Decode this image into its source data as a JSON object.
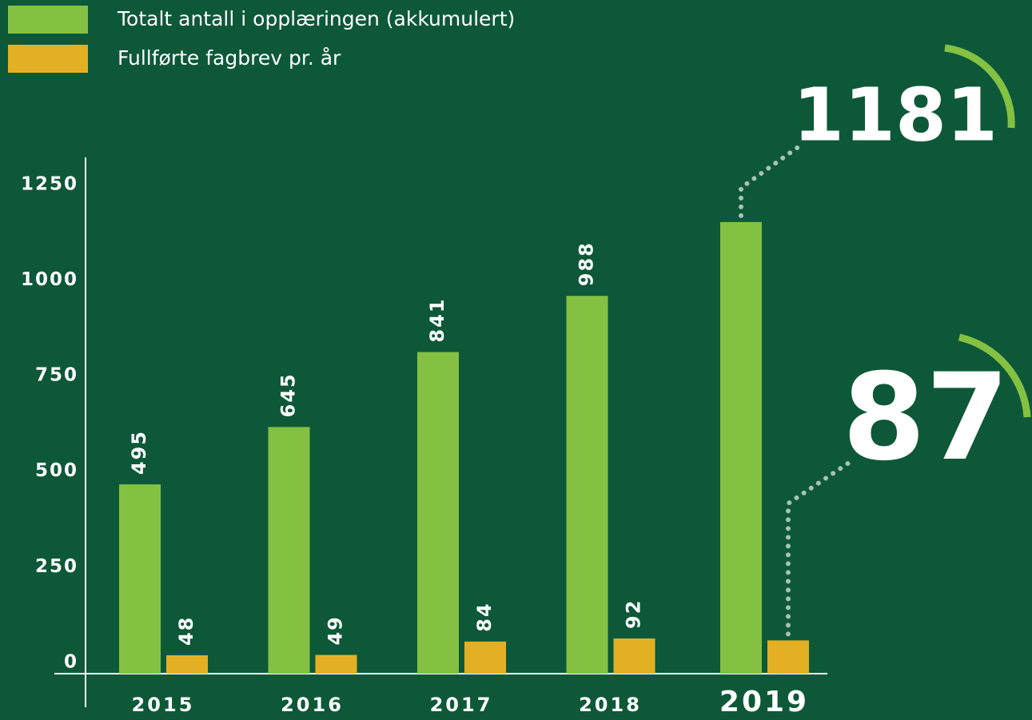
{
  "chart_data": {
    "type": "bar",
    "categories": [
      "2015",
      "2016",
      "2017",
      "2018",
      "2019"
    ],
    "series": [
      {
        "name": "Totalt antall i opplæringen (akkumulert)",
        "color": "#84c143",
        "values": [
          495,
          645,
          841,
          988,
          1181
        ]
      },
      {
        "name": "Fullførte fagbrev pr. år",
        "color": "#e3b024",
        "values": [
          48,
          49,
          84,
          92,
          87
        ]
      }
    ],
    "ylim": [
      0,
      1350
    ],
    "yticks": [
      0,
      250,
      500,
      750,
      1000,
      1250
    ],
    "legend": "top-left",
    "background": "#0d5838"
  }
}
